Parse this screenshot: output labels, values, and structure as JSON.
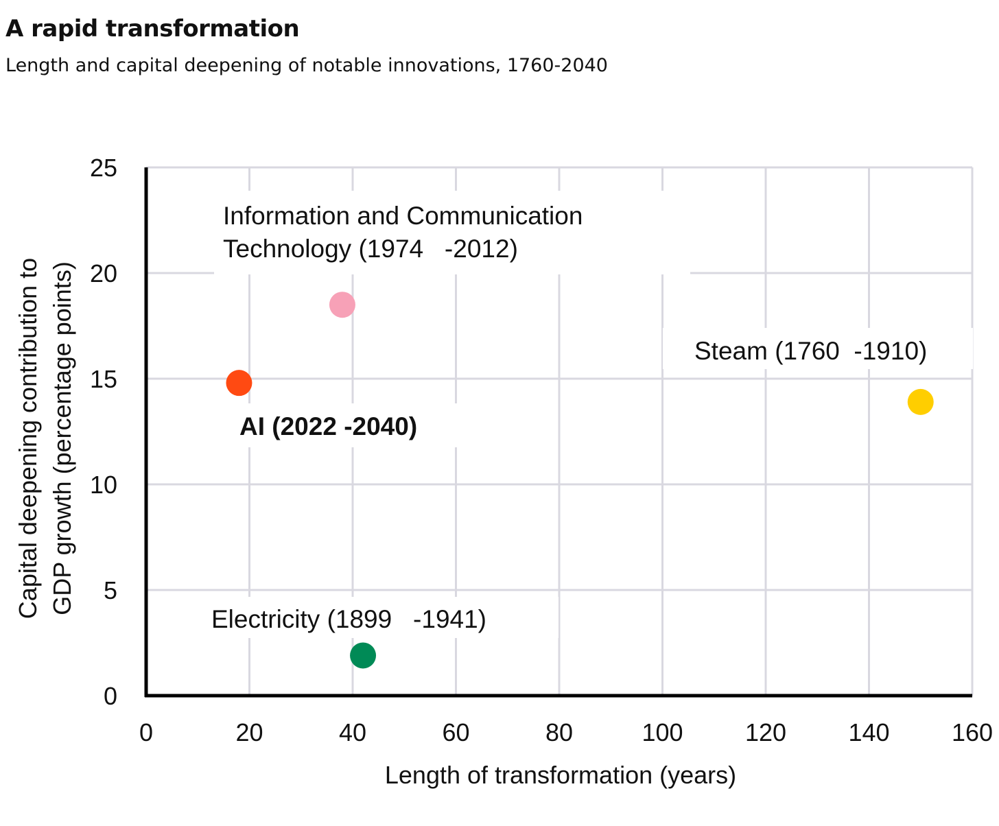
{
  "chart_data": {
    "type": "scatter",
    "title": "A rapid transformation",
    "subtitle": "Length and capital deepening of notable innovations, 1760-2040",
    "xlabel": "Length of transformation (years)",
    "ylabel_lines": [
      "Capital deepening contribution to",
      "GDP growth (percentage points)"
    ],
    "xlim": [
      0,
      160
    ],
    "ylim": [
      0,
      25
    ],
    "x_ticks": [
      0,
      20,
      40,
      60,
      80,
      100,
      120,
      140,
      160
    ],
    "y_ticks": [
      0,
      5,
      10,
      15,
      20,
      25
    ],
    "grid": true,
    "points": [
      {
        "name": "ict",
        "x": 38,
        "y": 18.5,
        "color": "#F7A1B7",
        "label_lines": [
          "Information and Communication",
          "Technology (1974   -2012)"
        ],
        "bold": false
      },
      {
        "name": "ai",
        "x": 18,
        "y": 14.8,
        "color": "#FF4A12",
        "label_lines": [
          "AI (2022 -2040)"
        ],
        "bold": true
      },
      {
        "name": "steam",
        "x": 150,
        "y": 13.9,
        "color": "#FFCE00",
        "label_lines": [
          "Steam (1760  -1910)"
        ],
        "bold": false
      },
      {
        "name": "electricity",
        "x": 42,
        "y": 1.9,
        "color": "#008A56",
        "label_lines": [
          "Electricity (1899   -1941)"
        ],
        "bold": false
      }
    ]
  },
  "colors": {
    "grid": "#D9D8E0",
    "axis": "#000000"
  }
}
